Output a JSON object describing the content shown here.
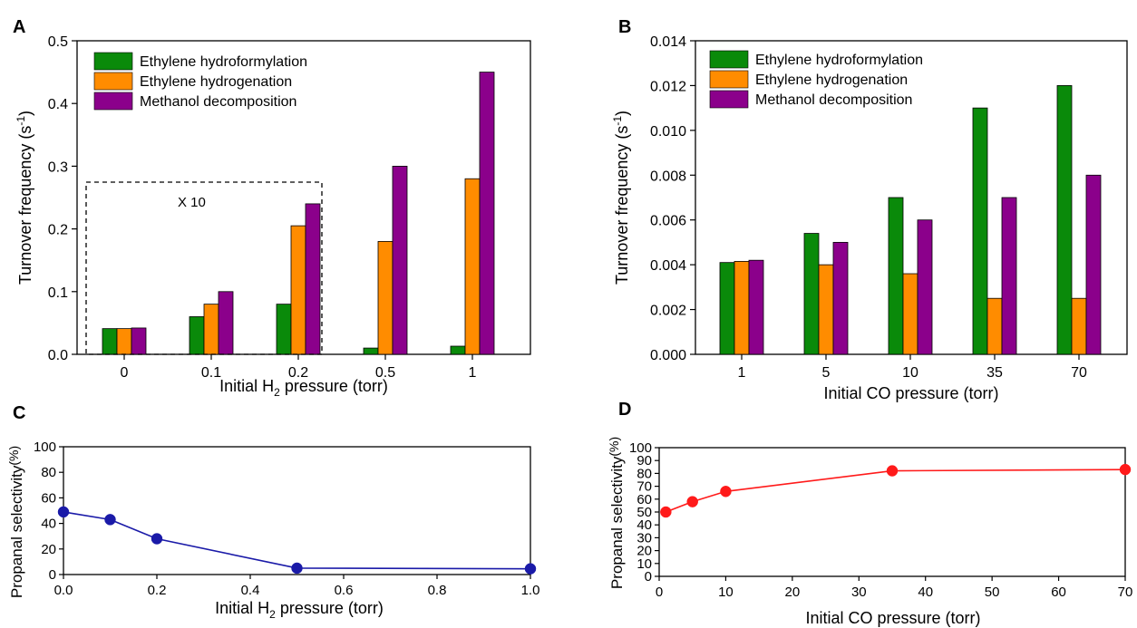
{
  "colors": {
    "hydroformylation": "#0a8a0a",
    "hydrogenation": "#ff8c00",
    "decomposition": "#8b008b",
    "panel_c_line": "#1a1aa8",
    "panel_d_line": "#ff1a1a"
  },
  "chart_data": [
    {
      "panel": "A",
      "type": "bar",
      "categories": [
        "0",
        "0.1",
        "0.2",
        "0.5",
        "1"
      ],
      "series": [
        {
          "name": "Ethylene hydroformylation",
          "values": [
            0.041,
            0.06,
            0.08,
            0.01,
            0.013
          ]
        },
        {
          "name": "Ethylene hydrogenation",
          "values": [
            0.041,
            0.08,
            0.205,
            0.18,
            0.28
          ]
        },
        {
          "name": "Methanol decomposition",
          "values": [
            0.042,
            0.1,
            0.24,
            0.3,
            0.45
          ]
        }
      ],
      "ylim": [
        0,
        0.5
      ],
      "yticks": [
        "0.0",
        "0.1",
        "0.2",
        "0.3",
        "0.4",
        "0.5"
      ],
      "xlabel_main": "Initial H",
      "xlabel_sub": "2",
      "xlabel_tail": " pressure (torr)",
      "ylabel_main": "Turnover frequency (s",
      "ylabel_sup": "-1",
      "ylabel_tail": ")",
      "annotation": "X 10",
      "legend_placement": "top-left"
    },
    {
      "panel": "B",
      "type": "bar",
      "categories": [
        "1",
        "5",
        "10",
        "35",
        "70"
      ],
      "series": [
        {
          "name": "Ethylene hydroformylation",
          "values": [
            0.0041,
            0.0054,
            0.007,
            0.011,
            0.012
          ]
        },
        {
          "name": "Ethylene hydrogenation",
          "values": [
            0.00415,
            0.004,
            0.0036,
            0.0025,
            0.0025
          ]
        },
        {
          "name": "Methanol decomposition",
          "values": [
            0.0042,
            0.005,
            0.006,
            0.007,
            0.008
          ]
        }
      ],
      "ylim": [
        0,
        0.014
      ],
      "yticks": [
        "0.000",
        "0.002",
        "0.004",
        "0.006",
        "0.008",
        "0.010",
        "0.012",
        "0.014"
      ],
      "xlabel": "Initial CO pressure (torr)",
      "ylabel_main": "Turnover frequency (s",
      "ylabel_sup": "-1",
      "ylabel_tail": ")",
      "legend_placement": "top-left"
    },
    {
      "panel": "C",
      "type": "line",
      "x": [
        0,
        0.1,
        0.2,
        0.5,
        1.0
      ],
      "y": [
        49,
        43,
        28,
        5,
        4.5
      ],
      "xlim": [
        0,
        1.0
      ],
      "ylim": [
        0,
        100
      ],
      "xticks": [
        "0.0",
        "0.2",
        "0.4",
        "0.6",
        "0.8",
        "1.0"
      ],
      "yticks": [
        "0",
        "20",
        "40",
        "60",
        "80",
        "100"
      ],
      "xlabel_main": "Initial H",
      "xlabel_sub": "2",
      "xlabel_tail": " pressure (torr)",
      "ylabel_main": "Propanal selectivity",
      "ylabel_unit": "(%)"
    },
    {
      "panel": "D",
      "type": "line",
      "x": [
        1,
        5,
        10,
        35,
        70
      ],
      "y": [
        50,
        58,
        66,
        82,
        83
      ],
      "xlim": [
        0,
        70
      ],
      "ylim": [
        0,
        100
      ],
      "xticks": [
        "0",
        "10",
        "20",
        "30",
        "40",
        "50",
        "60",
        "70"
      ],
      "yticks": [
        "0",
        "10",
        "20",
        "30",
        "40",
        "50",
        "60",
        "70",
        "80",
        "90",
        "100"
      ],
      "xlabel": "Initial CO pressure (torr)",
      "ylabel_main": "Propanal selectivity",
      "ylabel_unit": "(%)"
    }
  ]
}
